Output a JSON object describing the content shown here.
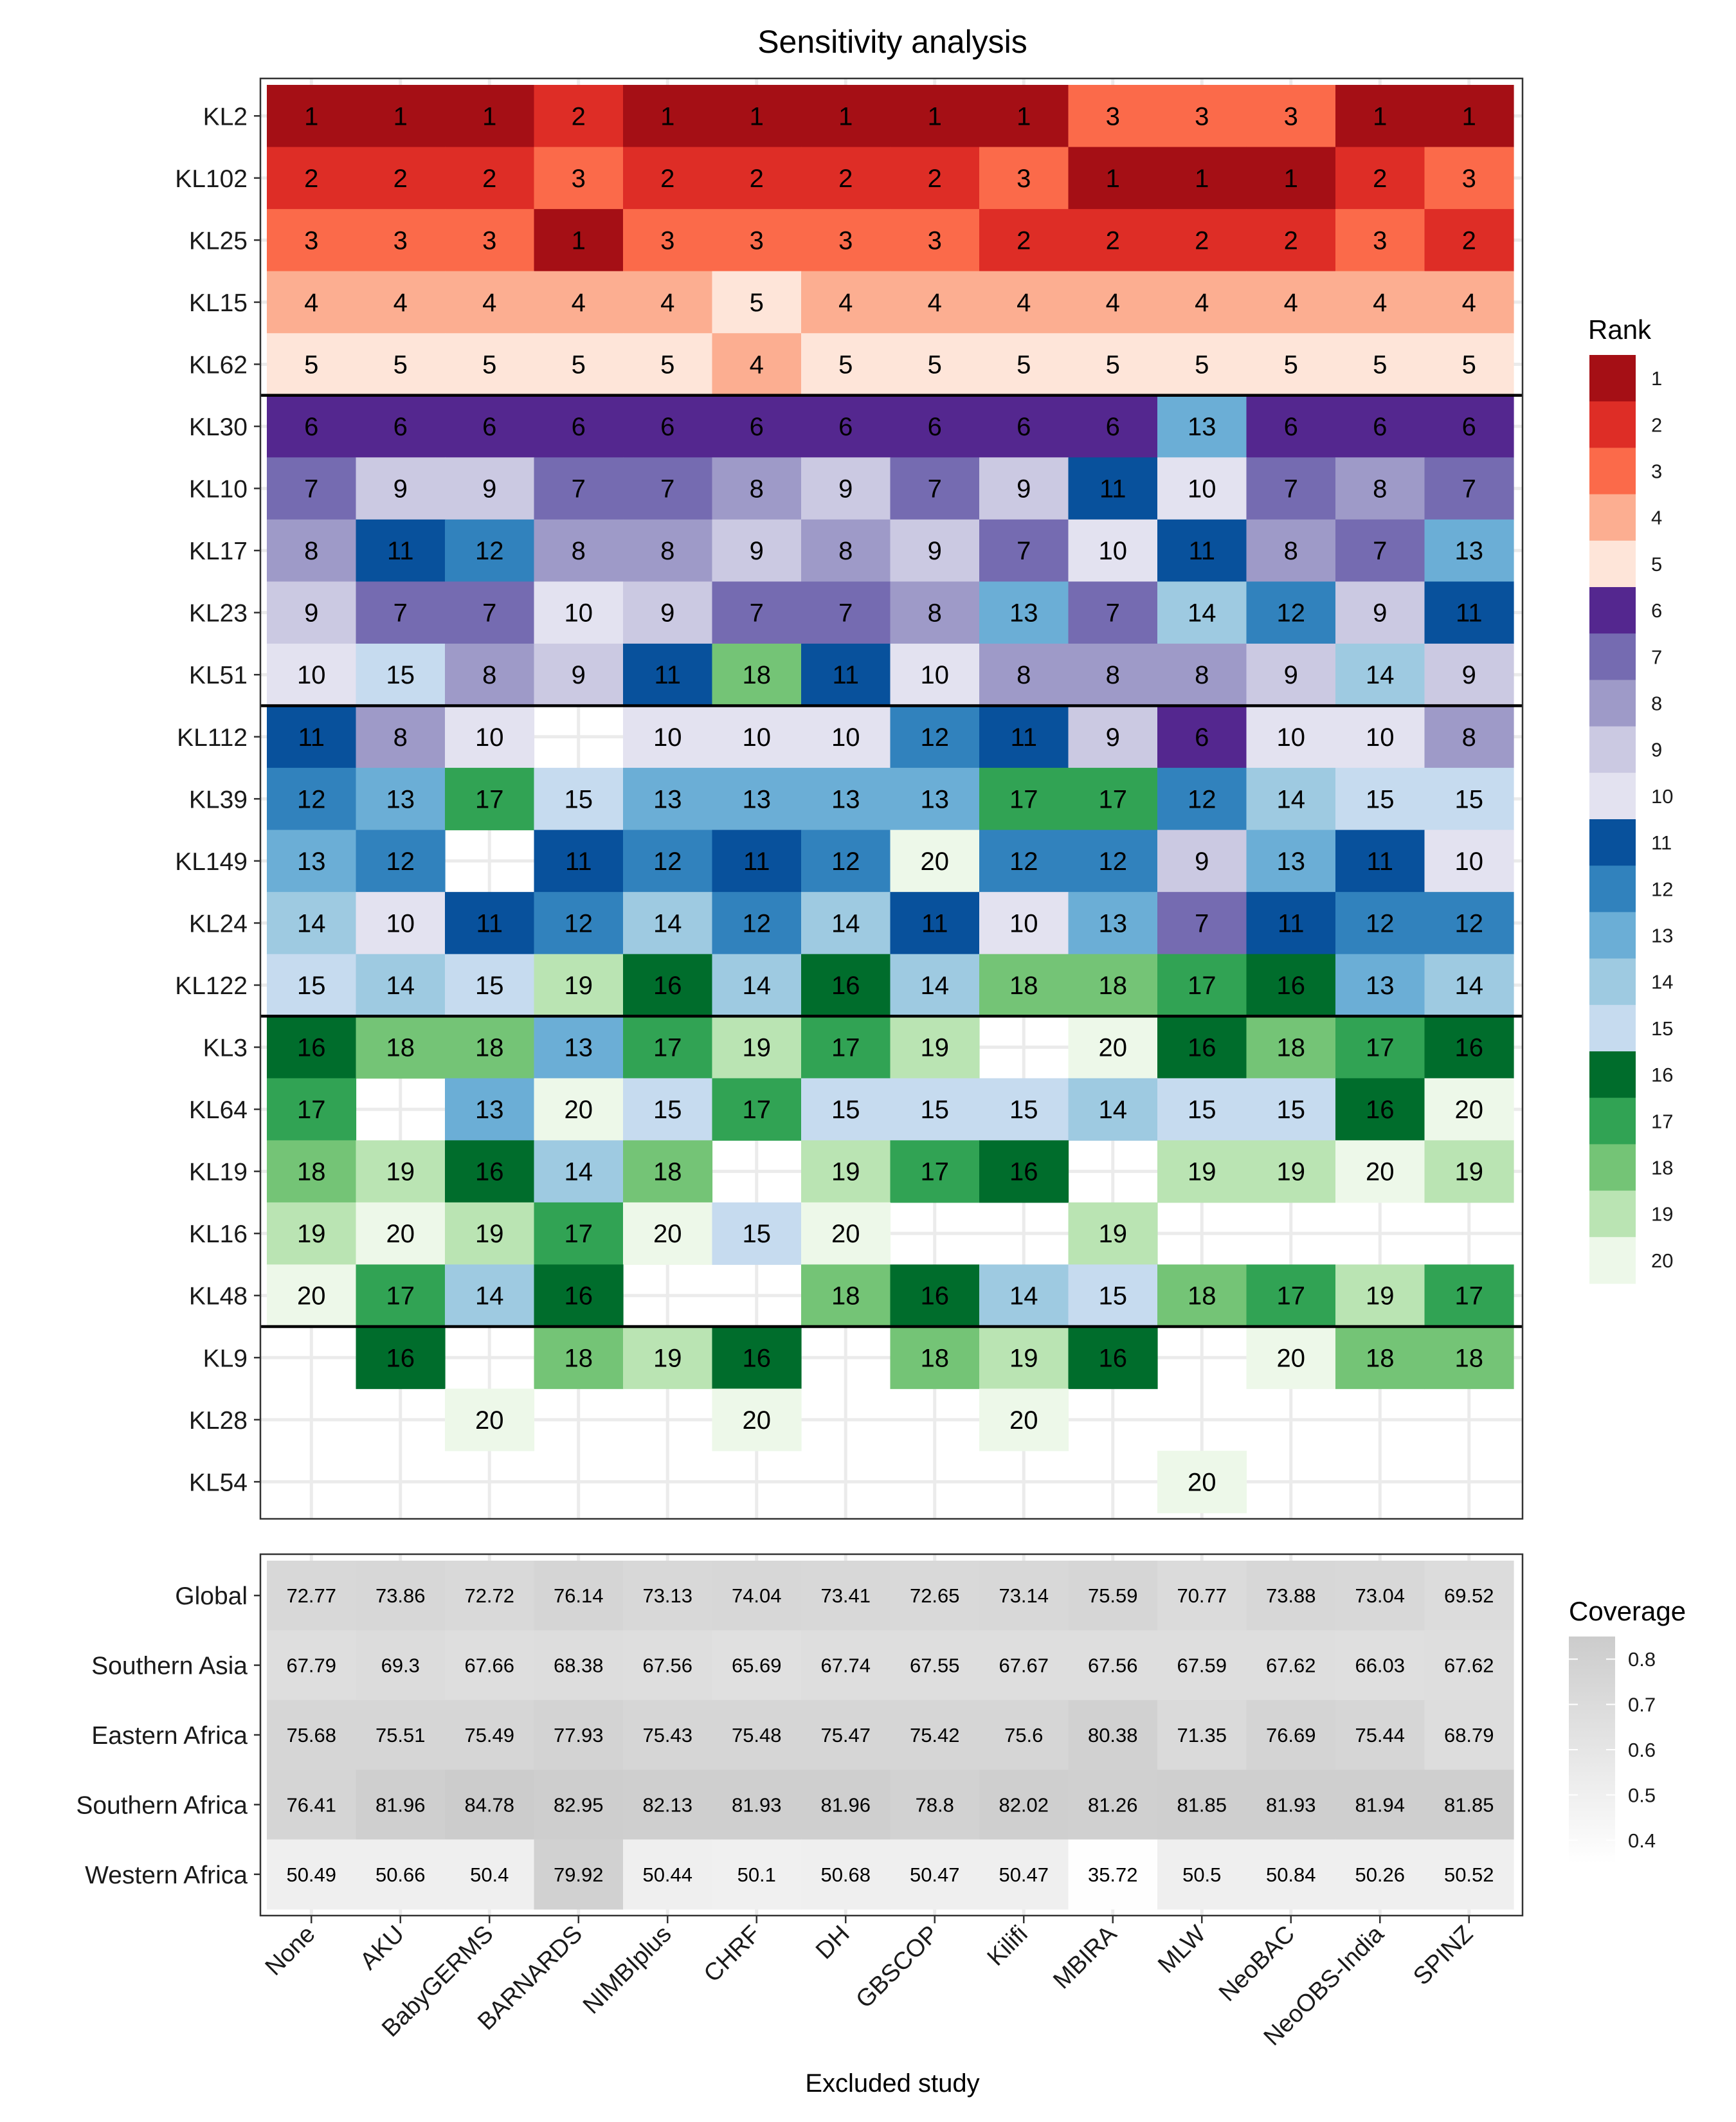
{
  "chart_data": {
    "type": "heatmap",
    "title": "Sensitivity analysis",
    "xlabel": "Excluded study",
    "ylabel": "",
    "categories": [
      "None",
      "AKU",
      "BabyGERMS",
      "BARNARDS",
      "NIMBIplus",
      "CHRF",
      "DH",
      "GBSCOP",
      "Kilifi",
      "MBIRA",
      "MLW",
      "NeoBAC",
      "NeoOBS-India",
      "SPINZ"
    ],
    "rank_panel": {
      "rows": [
        "KL2",
        "KL102",
        "KL25",
        "KL15",
        "KL62",
        "KL30",
        "KL10",
        "KL17",
        "KL23",
        "KL51",
        "KL112",
        "KL39",
        "KL149",
        "KL24",
        "KL122",
        "KL3",
        "KL64",
        "KL19",
        "KL16",
        "KL48",
        "KL9",
        "KL28",
        "KL54"
      ],
      "values": [
        [
          1,
          1,
          1,
          2,
          1,
          1,
          1,
          1,
          1,
          3,
          3,
          3,
          1,
          1
        ],
        [
          2,
          2,
          2,
          3,
          2,
          2,
          2,
          2,
          3,
          1,
          1,
          1,
          2,
          3
        ],
        [
          3,
          3,
          3,
          1,
          3,
          3,
          3,
          3,
          2,
          2,
          2,
          2,
          3,
          2
        ],
        [
          4,
          4,
          4,
          4,
          4,
          5,
          4,
          4,
          4,
          4,
          4,
          4,
          4,
          4
        ],
        [
          5,
          5,
          5,
          5,
          5,
          4,
          5,
          5,
          5,
          5,
          5,
          5,
          5,
          5
        ],
        [
          6,
          6,
          6,
          6,
          6,
          6,
          6,
          6,
          6,
          6,
          13,
          6,
          6,
          6
        ],
        [
          7,
          9,
          9,
          7,
          7,
          8,
          9,
          7,
          9,
          11,
          10,
          7,
          8,
          7
        ],
        [
          8,
          11,
          12,
          8,
          8,
          9,
          8,
          9,
          7,
          10,
          11,
          8,
          7,
          13
        ],
        [
          9,
          7,
          7,
          10,
          9,
          7,
          7,
          8,
          13,
          7,
          14,
          12,
          9,
          11
        ],
        [
          10,
          15,
          8,
          9,
          11,
          18,
          11,
          10,
          8,
          8,
          8,
          9,
          14,
          9
        ],
        [
          11,
          8,
          10,
          null,
          10,
          10,
          10,
          12,
          11,
          9,
          6,
          10,
          10,
          8
        ],
        [
          12,
          13,
          17,
          15,
          13,
          13,
          13,
          13,
          17,
          17,
          12,
          14,
          15,
          15
        ],
        [
          13,
          12,
          null,
          11,
          12,
          11,
          12,
          20,
          12,
          12,
          9,
          13,
          11,
          10
        ],
        [
          14,
          10,
          11,
          12,
          14,
          12,
          14,
          11,
          10,
          13,
          7,
          11,
          12,
          12
        ],
        [
          15,
          14,
          15,
          19,
          16,
          14,
          16,
          14,
          18,
          18,
          17,
          16,
          13,
          14
        ],
        [
          16,
          18,
          18,
          13,
          17,
          19,
          17,
          19,
          null,
          20,
          16,
          18,
          17,
          16
        ],
        [
          17,
          null,
          13,
          20,
          15,
          17,
          15,
          15,
          15,
          14,
          15,
          15,
          16,
          20
        ],
        [
          18,
          19,
          16,
          14,
          18,
          null,
          19,
          17,
          16,
          null,
          19,
          19,
          20,
          19
        ],
        [
          19,
          20,
          19,
          17,
          20,
          15,
          20,
          null,
          null,
          19,
          null,
          null,
          null,
          null
        ],
        [
          20,
          17,
          14,
          16,
          null,
          null,
          18,
          16,
          14,
          15,
          18,
          17,
          19,
          17
        ],
        [
          null,
          16,
          null,
          18,
          19,
          16,
          null,
          18,
          19,
          16,
          null,
          20,
          18,
          18
        ],
        [
          null,
          null,
          20,
          null,
          null,
          20,
          null,
          null,
          20,
          null,
          null,
          null,
          null,
          null
        ],
        [
          null,
          null,
          null,
          null,
          null,
          null,
          null,
          null,
          null,
          null,
          20,
          null,
          null,
          null
        ]
      ],
      "separators_after_rows": [
        5,
        10,
        15,
        20
      ]
    },
    "coverage_panel": {
      "rows": [
        "Global",
        "Southern Asia",
        "Eastern Africa",
        "Southern Africa",
        "Western Africa"
      ],
      "values": [
        [
          "72.77",
          "73.86",
          "72.72",
          "76.14",
          "73.13",
          "74.04",
          "73.41",
          "72.65",
          "73.14",
          "75.59",
          "70.77",
          "73.88",
          "73.04",
          "69.52"
        ],
        [
          "67.79",
          "69.3",
          "67.66",
          "68.38",
          "67.56",
          "65.69",
          "67.74",
          "67.55",
          "67.67",
          "67.56",
          "67.59",
          "67.62",
          "66.03",
          "67.62"
        ],
        [
          "75.68",
          "75.51",
          "75.49",
          "77.93",
          "75.43",
          "75.48",
          "75.47",
          "75.42",
          "75.6",
          "80.38",
          "71.35",
          "76.69",
          "75.44",
          "68.79"
        ],
        [
          "76.41",
          "81.96",
          "84.78",
          "82.95",
          "82.13",
          "81.93",
          "81.96",
          "78.8",
          "82.02",
          "81.26",
          "81.85",
          "81.93",
          "81.94",
          "81.85"
        ],
        [
          "50.49",
          "50.66",
          "50.4",
          "79.92",
          "50.44",
          "50.1",
          "50.68",
          "50.47",
          "50.47",
          "35.72",
          "50.5",
          "50.84",
          "50.26",
          "50.52"
        ]
      ]
    },
    "rank_legend": {
      "title": "Rank",
      "labels": [
        "1",
        "2",
        "3",
        "4",
        "5",
        "6",
        "7",
        "8",
        "9",
        "10",
        "11",
        "12",
        "13",
        "14",
        "15",
        "16",
        "17",
        "18",
        "19",
        "20"
      ],
      "colors": [
        "#a50f15",
        "#de2d26",
        "#fb6a4a",
        "#fcae91",
        "#fee5d9",
        "#54278f",
        "#756bb1",
        "#9e9ac8",
        "#cbc9e2",
        "#e3e2f0",
        "#08519c",
        "#3182bd",
        "#6baed6",
        "#9ecae1",
        "#c6dbef",
        "#006d2c",
        "#31a354",
        "#74c476",
        "#bae4b3",
        "#edf8e9"
      ]
    },
    "coverage_legend": {
      "title": "Coverage",
      "ticks": [
        "0.8",
        "0.7",
        "0.6",
        "0.5",
        "0.4"
      ],
      "range": [
        0.35,
        0.85
      ]
    }
  }
}
